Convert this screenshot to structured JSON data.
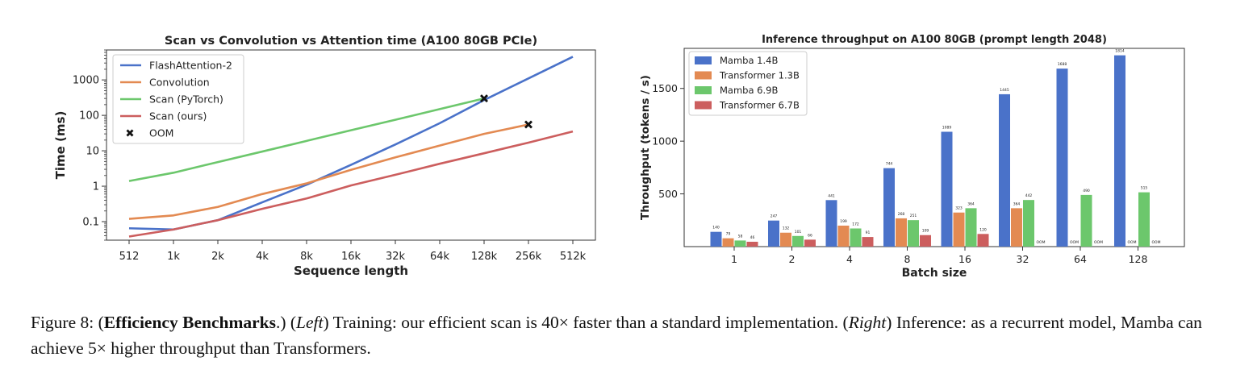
{
  "chart_data": [
    {
      "type": "line",
      "title": "Scan vs Convolution vs Attention time (A100 80GB PCIe)",
      "xlabel": "Sequence length",
      "ylabel": "Time (ms)",
      "yscale": "log",
      "ylim": [
        0.03,
        7000
      ],
      "categories": [
        "512",
        "1k",
        "2k",
        "4k",
        "8k",
        "16k",
        "32k",
        "64k",
        "128k",
        "256k",
        "512k"
      ],
      "yticks": [
        {
          "value": 0.1,
          "label": "0.1"
        },
        {
          "value": 1,
          "label": "1"
        },
        {
          "value": 10,
          "label": "10"
        },
        {
          "value": 100,
          "label": "100"
        },
        {
          "value": 1000,
          "label": "1000"
        }
      ],
      "legend": "top-left",
      "series": [
        {
          "name": "FlashAttention-2",
          "color": "#4a72c9",
          "values": [
            0.065,
            0.06,
            0.11,
            0.35,
            1.1,
            4,
            15,
            60,
            270,
            1100,
            4500
          ]
        },
        {
          "name": "Convolution",
          "color": "#e38a52",
          "values": [
            0.12,
            0.15,
            0.26,
            0.6,
            1.2,
            2.9,
            6.5,
            14,
            30,
            55,
            null
          ]
        },
        {
          "name": "Scan (PyTorch)",
          "color": "#6cc76c",
          "values": [
            1.4,
            2.4,
            4.8,
            9.5,
            19,
            38,
            75,
            150,
            300,
            null,
            null
          ]
        },
        {
          "name": "Scan (ours)",
          "color": "#cc5e5e",
          "values": [
            0.038,
            0.06,
            0.11,
            0.23,
            0.45,
            1.05,
            2.1,
            4.3,
            8.5,
            17,
            35
          ]
        }
      ],
      "oom_label": "OOM",
      "oom_points": [
        {
          "series": "Scan (PyTorch)",
          "x": "128k",
          "y": 300
        },
        {
          "series": "Convolution",
          "x": "256k",
          "y": 55
        }
      ]
    },
    {
      "type": "bar",
      "title": "Inference throughput on A100 80GB (prompt length 2048)",
      "xlabel": "Batch size",
      "ylabel": "Throughput (tokens / s)",
      "ylim": [
        0,
        1880
      ],
      "yticks": [
        500,
        1000,
        1500
      ],
      "legend": "top-left",
      "categories": [
        "1",
        "2",
        "4",
        "8",
        "16",
        "32",
        "64",
        "128"
      ],
      "oom_label": "OOM",
      "series": [
        {
          "name": "Mamba 1.4B",
          "color": "#4a72c9",
          "values": [
            140,
            247,
            441,
            744,
            1089,
            1445,
            1688,
            1814
          ]
        },
        {
          "name": "Transformer 1.3B",
          "color": "#e38a52",
          "values": [
            79,
            132,
            199,
            268,
            323,
            364,
            null,
            null
          ]
        },
        {
          "name": "Mamba 6.9B",
          "color": "#6cc76c",
          "values": [
            58,
            101,
            172,
            251,
            364,
            442,
            490,
            515
          ]
        },
        {
          "name": "Transformer 6.7B",
          "color": "#cc5e5e",
          "values": [
            46,
            66,
            91,
            109,
            120,
            null,
            null,
            null
          ]
        }
      ]
    }
  ],
  "caption": {
    "figure": "Figure 8: (",
    "heading": "Efficiency Benchmarks",
    "after_heading": ".) (",
    "left": "Left",
    "left_text": ") Training: our efficient scan is 40× faster than a standard implementation. (",
    "right": "Right",
    "right_text": ") Inference: as a recurrent model, Mamba can achieve 5× higher throughput than Transformers."
  }
}
